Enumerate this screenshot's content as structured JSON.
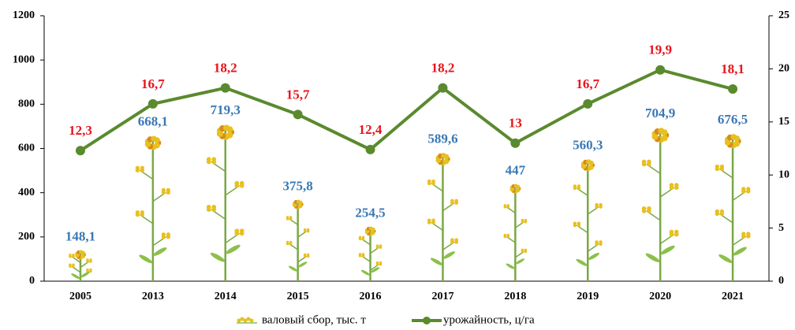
{
  "chart_data": {
    "type": "bar_line",
    "categories": [
      "2005",
      "2013",
      "2014",
      "2015",
      "2016",
      "2017",
      "2018",
      "2019",
      "2020",
      "2021"
    ],
    "series": [
      {
        "name": "валовый сбор, тыс. т",
        "type": "bar",
        "color": "#e8c020",
        "label_color": "#3a78b5",
        "values": [
          148.1,
          668.1,
          719.3,
          375.8,
          254.5,
          589.6,
          447,
          560.3,
          704.9,
          676.5
        ],
        "value_labels": [
          "148,1",
          "668,1",
          "719,3",
          "375,8",
          "254,5",
          "589,6",
          "447",
          "560,3",
          "704,9",
          "676,5"
        ]
      },
      {
        "name": "урожайность, ц/га",
        "type": "line",
        "axis": "y2",
        "color": "#5a8a2e",
        "label_color": "#e8141c",
        "values": [
          12.3,
          16.7,
          18.2,
          15.7,
          12.4,
          18.2,
          13,
          16.7,
          19.9,
          18.1
        ],
        "value_labels": [
          "12,3",
          "16,7",
          "18,2",
          "15,7",
          "12,4",
          "18,2",
          "13",
          "16,7",
          "19,9",
          "18,1"
        ]
      }
    ],
    "ylim": [
      0,
      1200
    ],
    "yticks": [
      0,
      200,
      400,
      600,
      800,
      1000,
      1200
    ],
    "y2lim": [
      0,
      25
    ],
    "y2ticks": [
      0,
      5,
      10,
      15,
      20,
      25
    ],
    "legend": "bottom"
  }
}
